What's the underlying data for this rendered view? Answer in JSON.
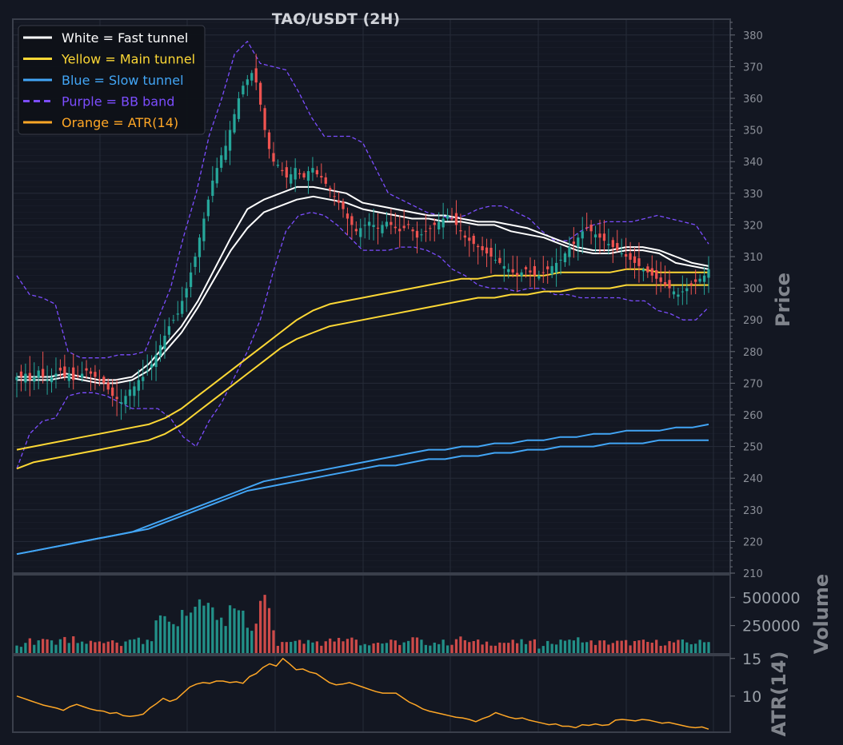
{
  "title": "TAO/USDT (2H)",
  "colors": {
    "background": "#131722",
    "frame": "#3a3f4b",
    "grid": "#262b38",
    "bull": "#26a69a",
    "bear": "#ef5350",
    "fast": "#ffffff",
    "main": "#fdd835",
    "slow": "#42a5f5",
    "bb": "#7c4dff",
    "atr": "#ffa726"
  },
  "legend": [
    {
      "label": "White = Fast tunnel",
      "color": "#ffffff",
      "dash": false
    },
    {
      "label": "Yellow = Main tunnel",
      "color": "#fdd835",
      "dash": false
    },
    {
      "label": "Blue = Slow tunnel",
      "color": "#42a5f5",
      "dash": false
    },
    {
      "label": "Purple = BB band",
      "color": "#7c4dff",
      "dash": true
    },
    {
      "label": "Orange = ATR(14)",
      "color": "#ffa726",
      "dash": false
    }
  ],
  "chart_data": {
    "type": "candlestick",
    "title": "TAO/USDT (2H)",
    "n": 160,
    "close": [
      272,
      272,
      273,
      271,
      272,
      274,
      272,
      271,
      272,
      273,
      274,
      272,
      273,
      271,
      272,
      273,
      274,
      273,
      272,
      271,
      270,
      268,
      266,
      265,
      264,
      266,
      268,
      269,
      271,
      272,
      274,
      276,
      279,
      282,
      285,
      288,
      290,
      292,
      296,
      300,
      305,
      310,
      316,
      322,
      328,
      334,
      338,
      342,
      345,
      350,
      355,
      360,
      364,
      366,
      368,
      365,
      358,
      350,
      344,
      340,
      339,
      337,
      335,
      336,
      338,
      336,
      335,
      337,
      338,
      336,
      335,
      333,
      331,
      329,
      327,
      325,
      322,
      320,
      318,
      319,
      320,
      321,
      320,
      319,
      320,
      321,
      320,
      319,
      318,
      319,
      320,
      318,
      316,
      317,
      318,
      319,
      320,
      321,
      322,
      323,
      322,
      320,
      318,
      316,
      315,
      314,
      313,
      312,
      311,
      310,
      309,
      308,
      307,
      306,
      305,
      304,
      305,
      306,
      305,
      304,
      304,
      305,
      306,
      307,
      308,
      309,
      311,
      313,
      314,
      316,
      318,
      319,
      318,
      317,
      316,
      315,
      314,
      313,
      312,
      311,
      310,
      309,
      308,
      307,
      306,
      305,
      304,
      303,
      302,
      301,
      300,
      299,
      298,
      299,
      300,
      301,
      302,
      303,
      304,
      306
    ],
    "fast_upper": [
      272,
      272,
      272,
      273,
      272,
      271,
      271,
      272,
      276,
      282,
      288,
      296,
      306,
      316,
      325,
      328,
      330,
      332,
      332,
      331,
      330,
      327,
      326,
      325,
      324,
      323,
      323,
      322,
      321,
      321,
      320,
      319,
      317,
      315,
      313,
      312,
      312,
      313,
      313,
      312,
      310,
      308,
      307
    ],
    "fast_lower": [
      271,
      271,
      271,
      272,
      271,
      270,
      270,
      271,
      274,
      280,
      286,
      294,
      303,
      312,
      319,
      324,
      326,
      328,
      329,
      328,
      327,
      325,
      324,
      323,
      322,
      322,
      321,
      321,
      320,
      320,
      318,
      317,
      316,
      314,
      312,
      311,
      311,
      312,
      312,
      311,
      308,
      307,
      306
    ],
    "main_upper": [
      249,
      250,
      251,
      252,
      253,
      254,
      255,
      256,
      257,
      259,
      262,
      266,
      270,
      274,
      278,
      282,
      286,
      290,
      293,
      295,
      296,
      297,
      298,
      299,
      300,
      301,
      302,
      303,
      303,
      304,
      304,
      304,
      304,
      305,
      305,
      305,
      305,
      306,
      306,
      305,
      305,
      305,
      305
    ],
    "main_lower": [
      243,
      245,
      246,
      247,
      248,
      249,
      250,
      251,
      252,
      254,
      257,
      261,
      265,
      269,
      273,
      277,
      281,
      284,
      286,
      288,
      289,
      290,
      291,
      292,
      293,
      294,
      295,
      296,
      297,
      297,
      298,
      298,
      299,
      299,
      300,
      300,
      300,
      301,
      301,
      301,
      301,
      301,
      301
    ],
    "slow_upper": [
      216,
      217,
      218,
      219,
      220,
      221,
      222,
      223,
      225,
      227,
      229,
      231,
      233,
      235,
      237,
      239,
      240,
      241,
      242,
      243,
      244,
      245,
      246,
      247,
      248,
      249,
      249,
      250,
      250,
      251,
      251,
      252,
      252,
      253,
      253,
      254,
      254,
      255,
      255,
      255,
      256,
      256,
      257
    ],
    "slow_lower": [
      216,
      217,
      218,
      219,
      220,
      221,
      222,
      223,
      224,
      226,
      228,
      230,
      232,
      234,
      236,
      237,
      238,
      239,
      240,
      241,
      242,
      243,
      244,
      244,
      245,
      246,
      246,
      247,
      247,
      248,
      248,
      249,
      249,
      250,
      250,
      250,
      251,
      251,
      251,
      252,
      252,
      252,
      252
    ],
    "bb_upper": [
      304,
      298,
      297,
      295,
      280,
      278,
      278,
      278,
      279,
      279,
      280,
      290,
      300,
      316,
      330,
      348,
      360,
      374,
      378,
      371,
      370,
      369,
      362,
      354,
      348,
      348,
      348,
      346,
      338,
      330,
      328,
      326,
      324,
      323,
      322,
      323,
      325,
      326,
      326,
      324,
      322,
      318,
      315,
      315,
      318,
      320,
      321,
      321,
      321,
      322,
      323,
      322,
      321,
      320,
      314
    ],
    "bb_lower": [
      243,
      254,
      258,
      259,
      266,
      267,
      267,
      266,
      264,
      262,
      262,
      262,
      259,
      253,
      250,
      258,
      264,
      272,
      280,
      290,
      305,
      318,
      323,
      324,
      323,
      320,
      316,
      312,
      312,
      312,
      313,
      313,
      312,
      310,
      306,
      304,
      301,
      300,
      300,
      299,
      300,
      300,
      298,
      298,
      297,
      297,
      297,
      297,
      296,
      296,
      293,
      292,
      290,
      290,
      294
    ],
    "ylim": [
      210,
      385
    ],
    "yticks": [
      210,
      220,
      230,
      240,
      250,
      260,
      270,
      280,
      290,
      300,
      310,
      320,
      330,
      340,
      350,
      360,
      370,
      380
    ],
    "ylabel": "Price",
    "volume": {
      "ylabel": "Volume",
      "ticks": [
        "250000",
        "500000"
      ],
      "tick_values": [
        250000,
        500000
      ],
      "ylim": [
        0,
        700000
      ]
    },
    "atr": {
      "ylabel": "ATR(14)",
      "ticks": [
        "10",
        "15"
      ],
      "tick_values": [
        10,
        15
      ],
      "ylim": [
        5.2,
        15.4
      ],
      "values": [
        10,
        9.7,
        9.4,
        9.1,
        8.8,
        8.6,
        8.4,
        8.1,
        8.6,
        8.9,
        8.6,
        8.3,
        8.1,
        8.0,
        7.7,
        7.8,
        7.4,
        7.3,
        7.4,
        7.6,
        8.4,
        9.0,
        9.7,
        9.3,
        9.6,
        10.4,
        11.2,
        11.6,
        11.8,
        11.7,
        12.0,
        12.0,
        11.8,
        11.9,
        11.7,
        12.6,
        13.0,
        13.8,
        14.3,
        14.0,
        15.0,
        14.3,
        13.5,
        13.6,
        13.2,
        13.0,
        12.4,
        11.8,
        11.5,
        11.6,
        11.8,
        11.5,
        11.2,
        10.9,
        10.6,
        10.4,
        10.4,
        10.4,
        9.8,
        9.2,
        8.8,
        8.3,
        8.0,
        7.8,
        7.6,
        7.4,
        7.2,
        7.1,
        6.9,
        6.6,
        7.0,
        7.3,
        7.8,
        7.5,
        7.2,
        7.0,
        7.1,
        6.8,
        6.6,
        6.4,
        6.2,
        6.3,
        6.0,
        6.0,
        5.8,
        6.2,
        6.1,
        6.3,
        6.1,
        6.2,
        6.8,
        6.9,
        6.8,
        6.7,
        6.9,
        6.8,
        6.6,
        6.4,
        6.5,
        6.3,
        6.1,
        5.9,
        5.8,
        5.9,
        5.6
      ]
    }
  }
}
